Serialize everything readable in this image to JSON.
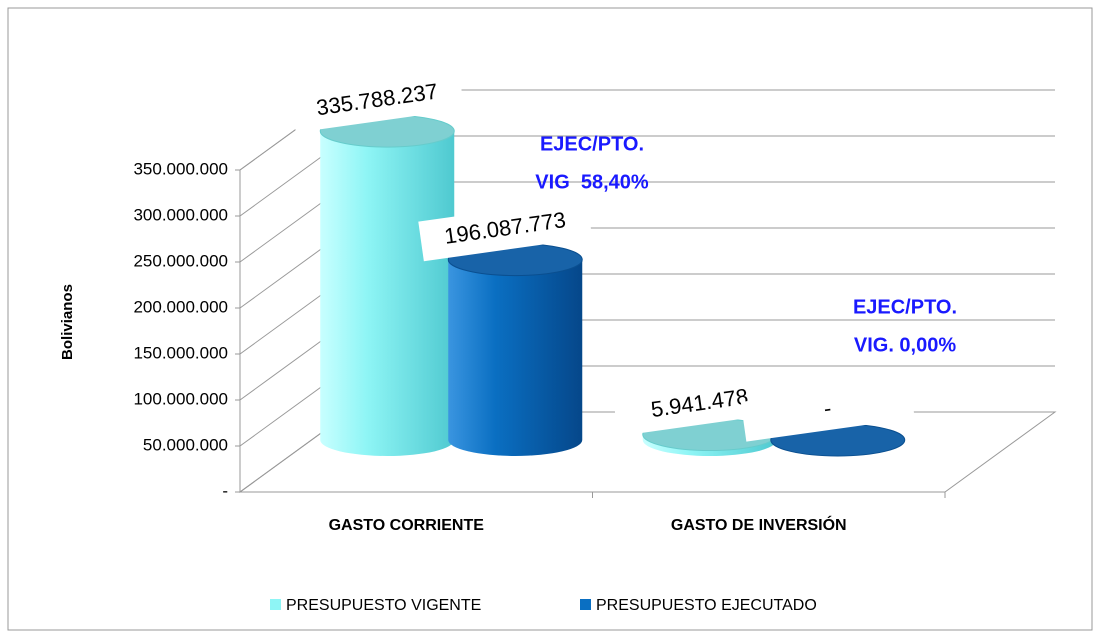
{
  "chart_data": {
    "type": "bar3d",
    "ylabel": "Bolivianos",
    "categories": [
      "GASTO CORRIENTE",
      "GASTO DE INVERSIÓN"
    ],
    "series": [
      {
        "name": "PRESUPUESTO VIGENTE",
        "color": "#8ef5f5",
        "values": [
          335788237,
          5941478
        ],
        "value_labels": [
          "335.788.237",
          "5.941.478"
        ]
      },
      {
        "name": "PRESUPUESTO EJECUTADO",
        "color": "#0a6fc2",
        "values": [
          196087773,
          0
        ],
        "value_labels": [
          "196.087.773",
          "-"
        ]
      }
    ],
    "ylim": [
      0,
      350000000
    ],
    "yticks": [
      {
        "value": 0,
        "label": "-"
      },
      {
        "value": 50000000,
        "label": "50.000.000"
      },
      {
        "value": 100000000,
        "label": "100.000.000"
      },
      {
        "value": 150000000,
        "label": "150.000.000"
      },
      {
        "value": 200000000,
        "label": "200.000.000"
      },
      {
        "value": 250000000,
        "label": "250.000.000"
      },
      {
        "value": 300000000,
        "label": "300.000.000"
      },
      {
        "value": 350000000,
        "label": "350.000.000"
      }
    ],
    "grid": true,
    "legend": "bottom",
    "annotations": [
      {
        "lines": [
          "EJEC/PTO.",
          "VIG  58,40%"
        ]
      },
      {
        "lines": [
          "EJEC/PTO.",
          "VIG. 0,00%"
        ]
      }
    ]
  }
}
